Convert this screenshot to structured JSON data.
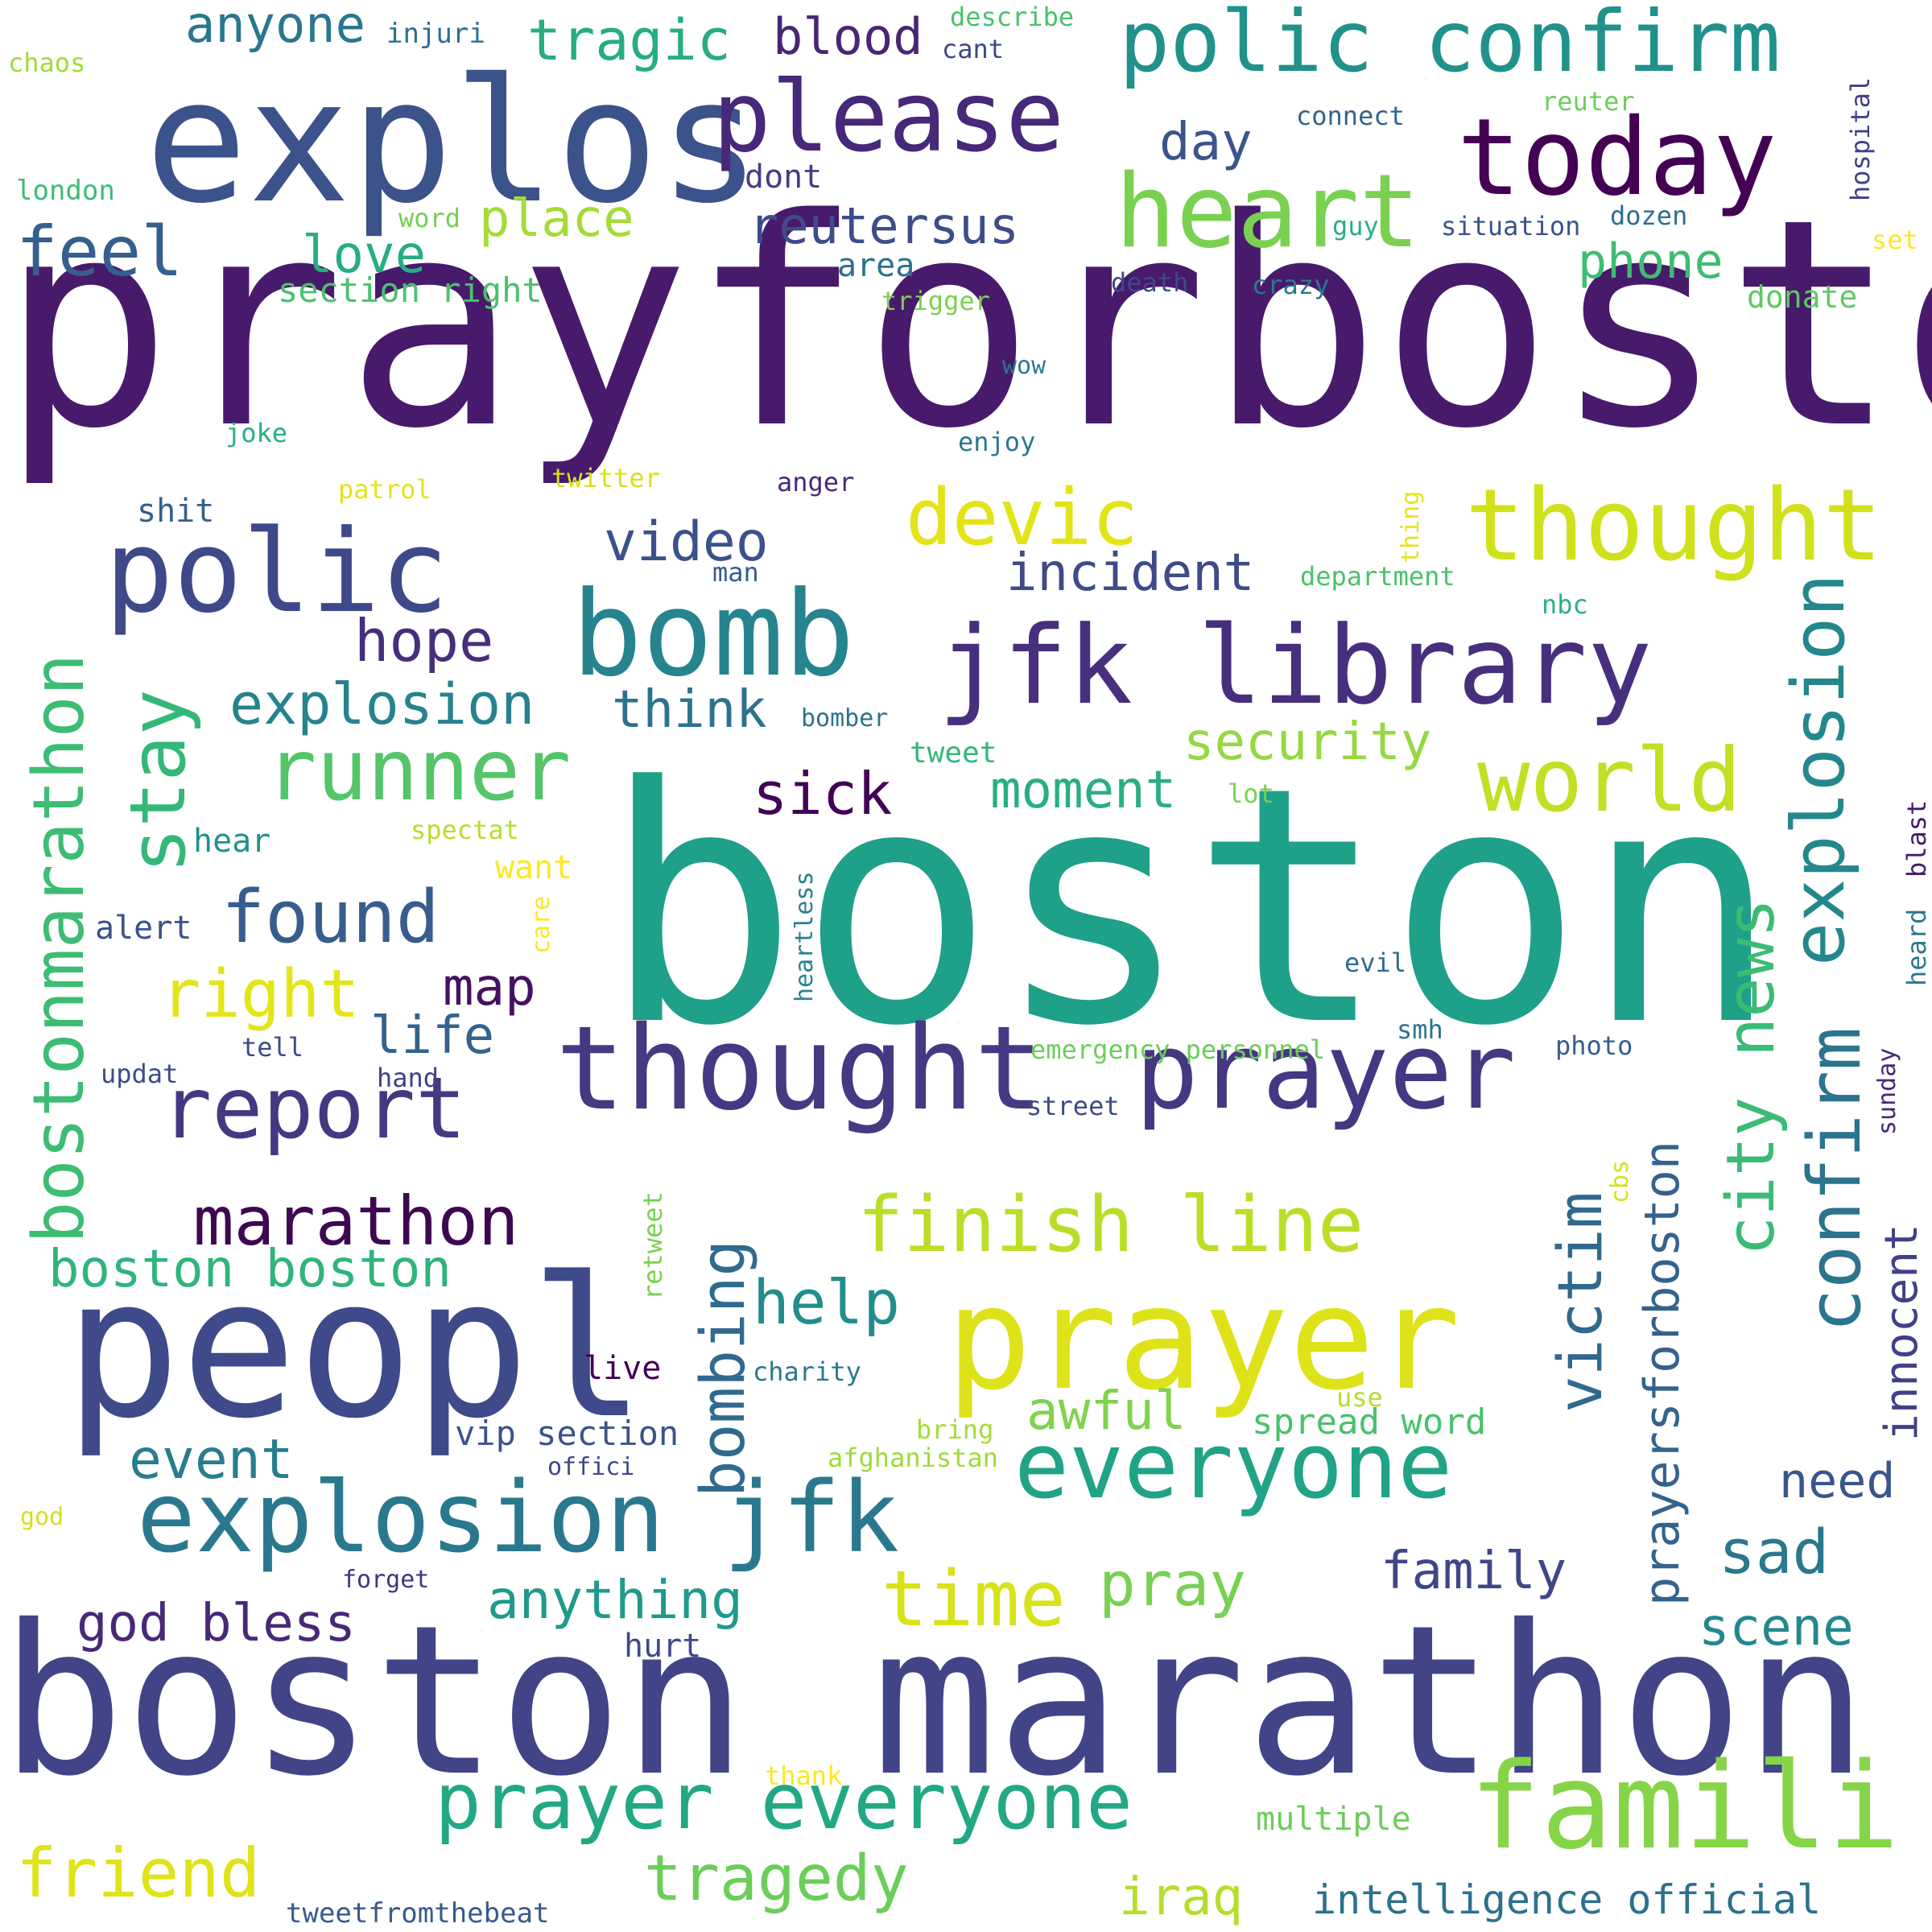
{
  "words": [
    {
      "text": "prayforboston",
      "color": "#481a6c"
    },
    {
      "text": "boston",
      "color": "#1fa088"
    },
    {
      "text": "boston marathon",
      "color": "#414487"
    },
    {
      "text": "explos",
      "color": "#3b528b"
    },
    {
      "text": "peopl",
      "color": "#3e4a89"
    },
    {
      "text": "prayer",
      "color": "#dde318"
    },
    {
      "text": "famili",
      "color": "#86d549"
    },
    {
      "text": "jfk library",
      "color": "#472f7d"
    },
    {
      "text": "thought",
      "color": "#443983"
    },
    {
      "text": "prayer",
      "color": "#453781"
    },
    {
      "text": "thought",
      "color": "#d0e11c"
    },
    {
      "text": "explosion jfk",
      "color": "#2a788e"
    },
    {
      "text": "polic",
      "color": "#3e4989"
    },
    {
      "text": "bomb",
      "color": "#25848e"
    },
    {
      "text": "today",
      "color": "#440154"
    },
    {
      "text": "polic confirm",
      "color": "#21918c"
    },
    {
      "text": "please",
      "color": "#482878"
    },
    {
      "text": "heart",
      "color": "#7ad151"
    },
    {
      "text": "everyone",
      "color": "#20a386"
    },
    {
      "text": "prayer everyone",
      "color": "#22a884"
    },
    {
      "text": "world",
      "color": "#c2df23"
    },
    {
      "text": "devic",
      "color": "#e2e418"
    },
    {
      "text": "runner",
      "color": "#54c568"
    },
    {
      "text": "report",
      "color": "#453882"
    },
    {
      "text": "finish line",
      "color": "#bade28"
    },
    {
      "text": "time",
      "color": "#d8e219"
    },
    {
      "text": "friend",
      "color": "#dfe318"
    },
    {
      "text": "tragedy",
      "color": "#6ccd5a"
    },
    {
      "text": "marathon",
      "color": "#3e0751"
    },
    {
      "text": "stay",
      "color": "#35b779"
    },
    {
      "text": "bostonmarathon",
      "color": "#3dbc74"
    },
    {
      "text": "explosion",
      "color": "#24878e"
    },
    {
      "text": "confirm",
      "color": "#2c738e"
    },
    {
      "text": "city news",
      "color": "#3bbb75"
    },
    {
      "text": "victim",
      "color": "#31688e"
    },
    {
      "text": "found",
      "color": "#365d8d"
    },
    {
      "text": "right",
      "color": "#e5e419"
    },
    {
      "text": "feel",
      "color": "#355f8d"
    },
    {
      "text": "explosion",
      "color": "#26828e"
    },
    {
      "text": "hope",
      "color": "#472d7b"
    },
    {
      "text": "video",
      "color": "#3b518b"
    },
    {
      "text": "incident",
      "color": "#3e4a89"
    },
    {
      "text": "security",
      "color": "#95d840"
    },
    {
      "text": "sick",
      "color": "#440256"
    },
    {
      "text": "moment",
      "color": "#29af7f"
    },
    {
      "text": "think",
      "color": "#2c728e"
    },
    {
      "text": "map",
      "color": "#471063"
    },
    {
      "text": "life",
      "color": "#33638d"
    },
    {
      "text": "bombing",
      "color": "#306a8e"
    },
    {
      "text": "help",
      "color": "#228d8d"
    },
    {
      "text": "awful",
      "color": "#7fd34e"
    },
    {
      "text": "pray",
      "color": "#78d152"
    },
    {
      "text": "boston boston",
      "color": "#2fb47c"
    },
    {
      "text": "event",
      "color": "#287d8e"
    },
    {
      "text": "anything",
      "color": "#1f9a8a"
    },
    {
      "text": "god bless",
      "color": "#482878"
    },
    {
      "text": "iraq",
      "color": "#b5de2b"
    },
    {
      "text": "intelligence official",
      "color": "#2c718e"
    },
    {
      "text": "sad",
      "color": "#2a788e"
    },
    {
      "text": "family",
      "color": "#3f4788"
    },
    {
      "text": "scene",
      "color": "#23888e"
    },
    {
      "text": "need",
      "color": "#39568c"
    },
    {
      "text": "innocent",
      "color": "#424086"
    },
    {
      "text": "prayersforboston",
      "color": "#33638d"
    },
    {
      "text": "reutersus",
      "color": "#3e4c8a"
    },
    {
      "text": "place",
      "color": "#a5db36"
    },
    {
      "text": "love",
      "color": "#27ad81"
    },
    {
      "text": "day",
      "color": "#3a548c"
    },
    {
      "text": "tragic",
      "color": "#27ad81"
    },
    {
      "text": "blood",
      "color": "#482576"
    },
    {
      "text": "anyone",
      "color": "#2a768e"
    },
    {
      "text": "phone",
      "color": "#3dbc74"
    },
    {
      "text": "section right",
      "color": "#4ac16d"
    },
    {
      "text": "dont",
      "color": "#433e85"
    },
    {
      "text": "area",
      "color": "#2d708e"
    },
    {
      "text": "donate",
      "color": "#5ec962"
    },
    {
      "text": "spread word",
      "color": "#4ac16d"
    },
    {
      "text": "vip section",
      "color": "#3b528b"
    },
    {
      "text": "live",
      "color": "#440154"
    },
    {
      "text": "hurt",
      "color": "#3e4989"
    },
    {
      "text": "tweetfromthebeat",
      "color": "#38598c"
    },
    {
      "text": "multiple",
      "color": "#6ccd5a"
    },
    {
      "text": "thank",
      "color": "#fde725"
    },
    {
      "text": "injuri",
      "color": "#2e6f8e"
    },
    {
      "text": "describe",
      "color": "#4ac16d"
    },
    {
      "text": "cant",
      "color": "#3f4788"
    },
    {
      "text": "chaos",
      "color": "#a0da39"
    },
    {
      "text": "london",
      "color": "#3dbc74"
    },
    {
      "text": "connect",
      "color": "#33638d"
    },
    {
      "text": "reuter",
      "color": "#6ccd5a"
    },
    {
      "text": "word",
      "color": "#75d054"
    },
    {
      "text": "guy",
      "color": "#29af7f"
    },
    {
      "text": "situation",
      "color": "#3b528b"
    },
    {
      "text": "dozen",
      "color": "#2f6c8e"
    },
    {
      "text": "hospital",
      "color": "#424086"
    },
    {
      "text": "set",
      "color": "#fde725"
    },
    {
      "text": "death",
      "color": "#3e4989"
    },
    {
      "text": "crazy",
      "color": "#2a788e"
    },
    {
      "text": "trigger",
      "color": "#7ad151"
    },
    {
      "text": "wow",
      "color": "#2a788e"
    },
    {
      "text": "joke",
      "color": "#29af7f"
    },
    {
      "text": "enjoy",
      "color": "#2a788e"
    },
    {
      "text": "patrol",
      "color": "#e5e419"
    },
    {
      "text": "twitter",
      "color": "#d8e219"
    },
    {
      "text": "anger",
      "color": "#482878"
    },
    {
      "text": "shit",
      "color": "#355f8d"
    },
    {
      "text": "thing",
      "color": "#e5e419"
    },
    {
      "text": "man",
      "color": "#365c8d"
    },
    {
      "text": "department",
      "color": "#4ac16d"
    },
    {
      "text": "nbc",
      "color": "#2ab07f"
    },
    {
      "text": "bomber",
      "color": "#2c728e"
    },
    {
      "text": "tweet",
      "color": "#34b679"
    },
    {
      "text": "lot",
      "color": "#7ad151"
    },
    {
      "text": "hear",
      "color": "#21918c"
    },
    {
      "text": "spectat",
      "color": "#b5de2b"
    },
    {
      "text": "want",
      "color": "#fde725"
    },
    {
      "text": "care",
      "color": "#fde725"
    },
    {
      "text": "heartless",
      "color": "#26828e"
    },
    {
      "text": "alert",
      "color": "#3b528b"
    },
    {
      "text": "blast",
      "color": "#481a6c"
    },
    {
      "text": "heard",
      "color": "#2a788e"
    },
    {
      "text": "evil",
      "color": "#306a8e"
    },
    {
      "text": "tell",
      "color": "#3e4989"
    },
    {
      "text": "smh",
      "color": "#2c728e"
    },
    {
      "text": "photo",
      "color": "#365c8d"
    },
    {
      "text": "updat",
      "color": "#3e4c8a"
    },
    {
      "text": "hand",
      "color": "#424086"
    },
    {
      "text": "emergency personnel",
      "color": "#6ccd5a"
    },
    {
      "text": "sunday",
      "color": "#482878"
    },
    {
      "text": "street",
      "color": "#3e4a89"
    },
    {
      "text": "cbs",
      "color": "#d2e21b"
    },
    {
      "text": "retweet",
      "color": "#7ad151"
    },
    {
      "text": "charity",
      "color": "#2a788e"
    },
    {
      "text": "use",
      "color": "#b5de2b"
    },
    {
      "text": "bring",
      "color": "#a5db36"
    },
    {
      "text": "afghanistan",
      "color": "#a0da39"
    },
    {
      "text": "offici",
      "color": "#3f4788"
    },
    {
      "text": "god",
      "color": "#d2e21b"
    },
    {
      "text": "forget",
      "color": "#46337e"
    }
  ]
}
